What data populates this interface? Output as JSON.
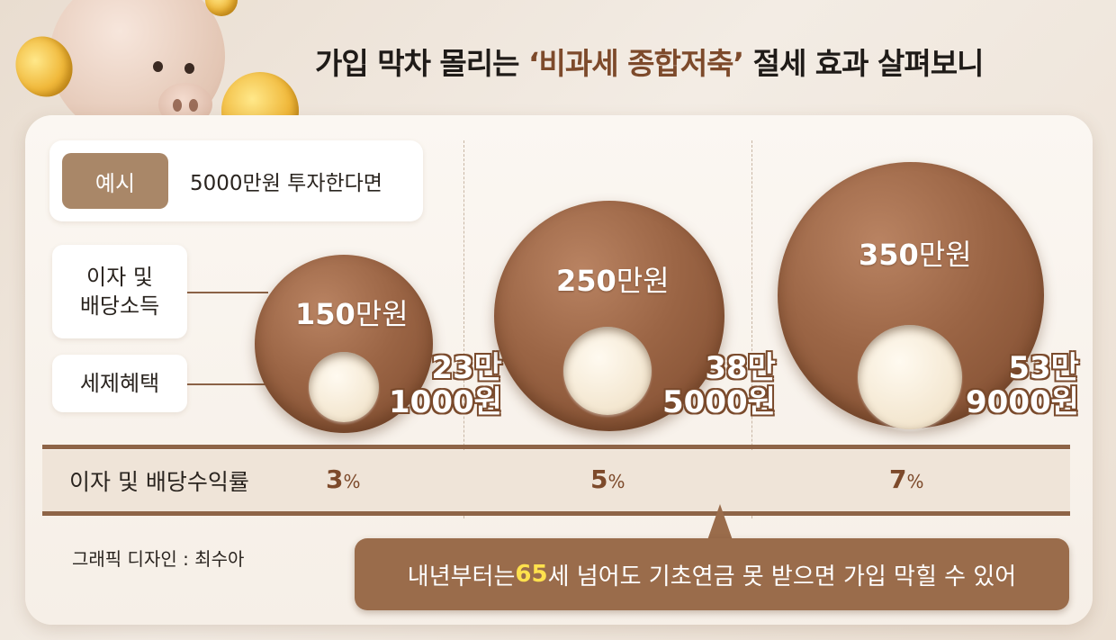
{
  "title": {
    "prefix": "가입 막차 몰리는 ",
    "highlight": "‘비과세 종합저축’",
    "suffix": " 절세 효과 살펴보니"
  },
  "example": {
    "tag": "예시",
    "text": "5000만원 투자한다면"
  },
  "labels": {
    "income_line1": "이자 및",
    "income_line2": "배당소득",
    "tax": "세제혜택",
    "rate": "이자 및 배당수익률"
  },
  "chart_data": {
    "type": "bubble",
    "categories": [
      "3%",
      "5%",
      "7%"
    ],
    "series": [
      {
        "name": "이자 및 배당소득",
        "values": [
          150,
          250,
          350
        ],
        "unit": "만원"
      },
      {
        "name": "세제혜택",
        "values": [
          231000,
          385000,
          539000
        ],
        "unit": "원"
      }
    ]
  },
  "bubbles": [
    {
      "income_num": "150",
      "income_unit": "만원",
      "tax_line1": "23만",
      "tax_line2": "1000원",
      "rate_num": "3",
      "rate_unit": "%"
    },
    {
      "income_num": "250",
      "income_unit": "만원",
      "tax_line1": "38만",
      "tax_line2": "5000원",
      "rate_num": "5",
      "rate_unit": "%"
    },
    {
      "income_num": "350",
      "income_unit": "만원",
      "tax_line1": "53만",
      "tax_line2": "9000원",
      "rate_num": "7",
      "rate_unit": "%"
    }
  ],
  "credit": "그래픽 디자인 : 최수아",
  "callout": {
    "prefix": "내년부터는 ",
    "highlight": "65",
    "suffix": "세 넘어도 기초연금 못 받으면 가입 막힐 수 있어"
  },
  "colors": {
    "bubble": "#9b6545",
    "inner": "#f3e6cf",
    "accent": "#7d4a2b",
    "callout": "#9a6c4b",
    "callout_highlight": "#ffe14d"
  }
}
